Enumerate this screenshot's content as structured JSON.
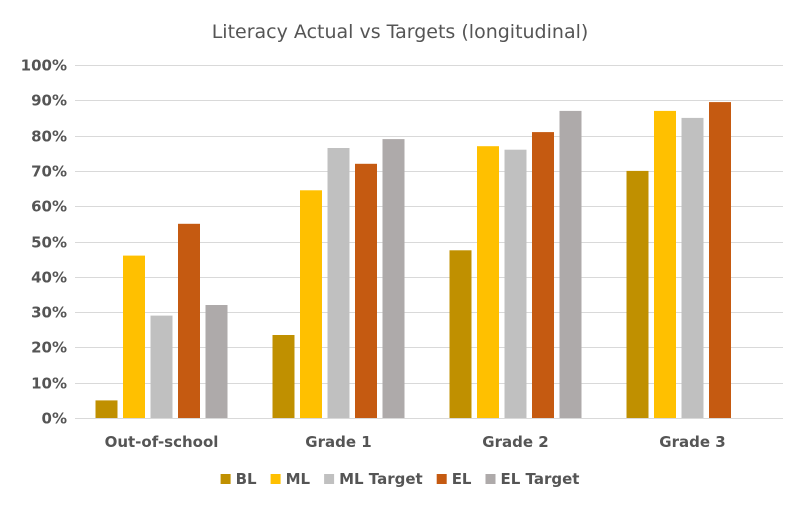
{
  "chart_data": {
    "type": "bar",
    "title": "Literacy Actual vs Targets (longitudinal)",
    "xlabel": "",
    "ylabel": "",
    "ylim": [
      0,
      1
    ],
    "yticks": [
      "0%",
      "10%",
      "20%",
      "30%",
      "40%",
      "50%",
      "60%",
      "70%",
      "80%",
      "90%",
      "100%"
    ],
    "categories": [
      "Out-of-school",
      "Grade 1",
      "Grade 2",
      "Grade 3"
    ],
    "grid": true,
    "legend_position": "bottom",
    "series": [
      {
        "name": "BL",
        "color": "#C09000",
        "values": [
          0.05,
          0.235,
          0.475,
          0.7
        ]
      },
      {
        "name": "ML",
        "color": "#FFC000",
        "values": [
          0.46,
          0.645,
          0.77,
          0.87
        ]
      },
      {
        "name": "ML Target",
        "color": "#C0C0C0",
        "values": [
          0.29,
          0.765,
          0.76,
          0.85
        ]
      },
      {
        "name": "EL",
        "color": "#C55A11",
        "values": [
          0.55,
          0.72,
          0.81,
          0.895
        ]
      },
      {
        "name": "EL Target",
        "color": "#AEAAAA",
        "values": [
          0.32,
          0.79,
          0.87,
          null
        ]
      }
    ]
  }
}
